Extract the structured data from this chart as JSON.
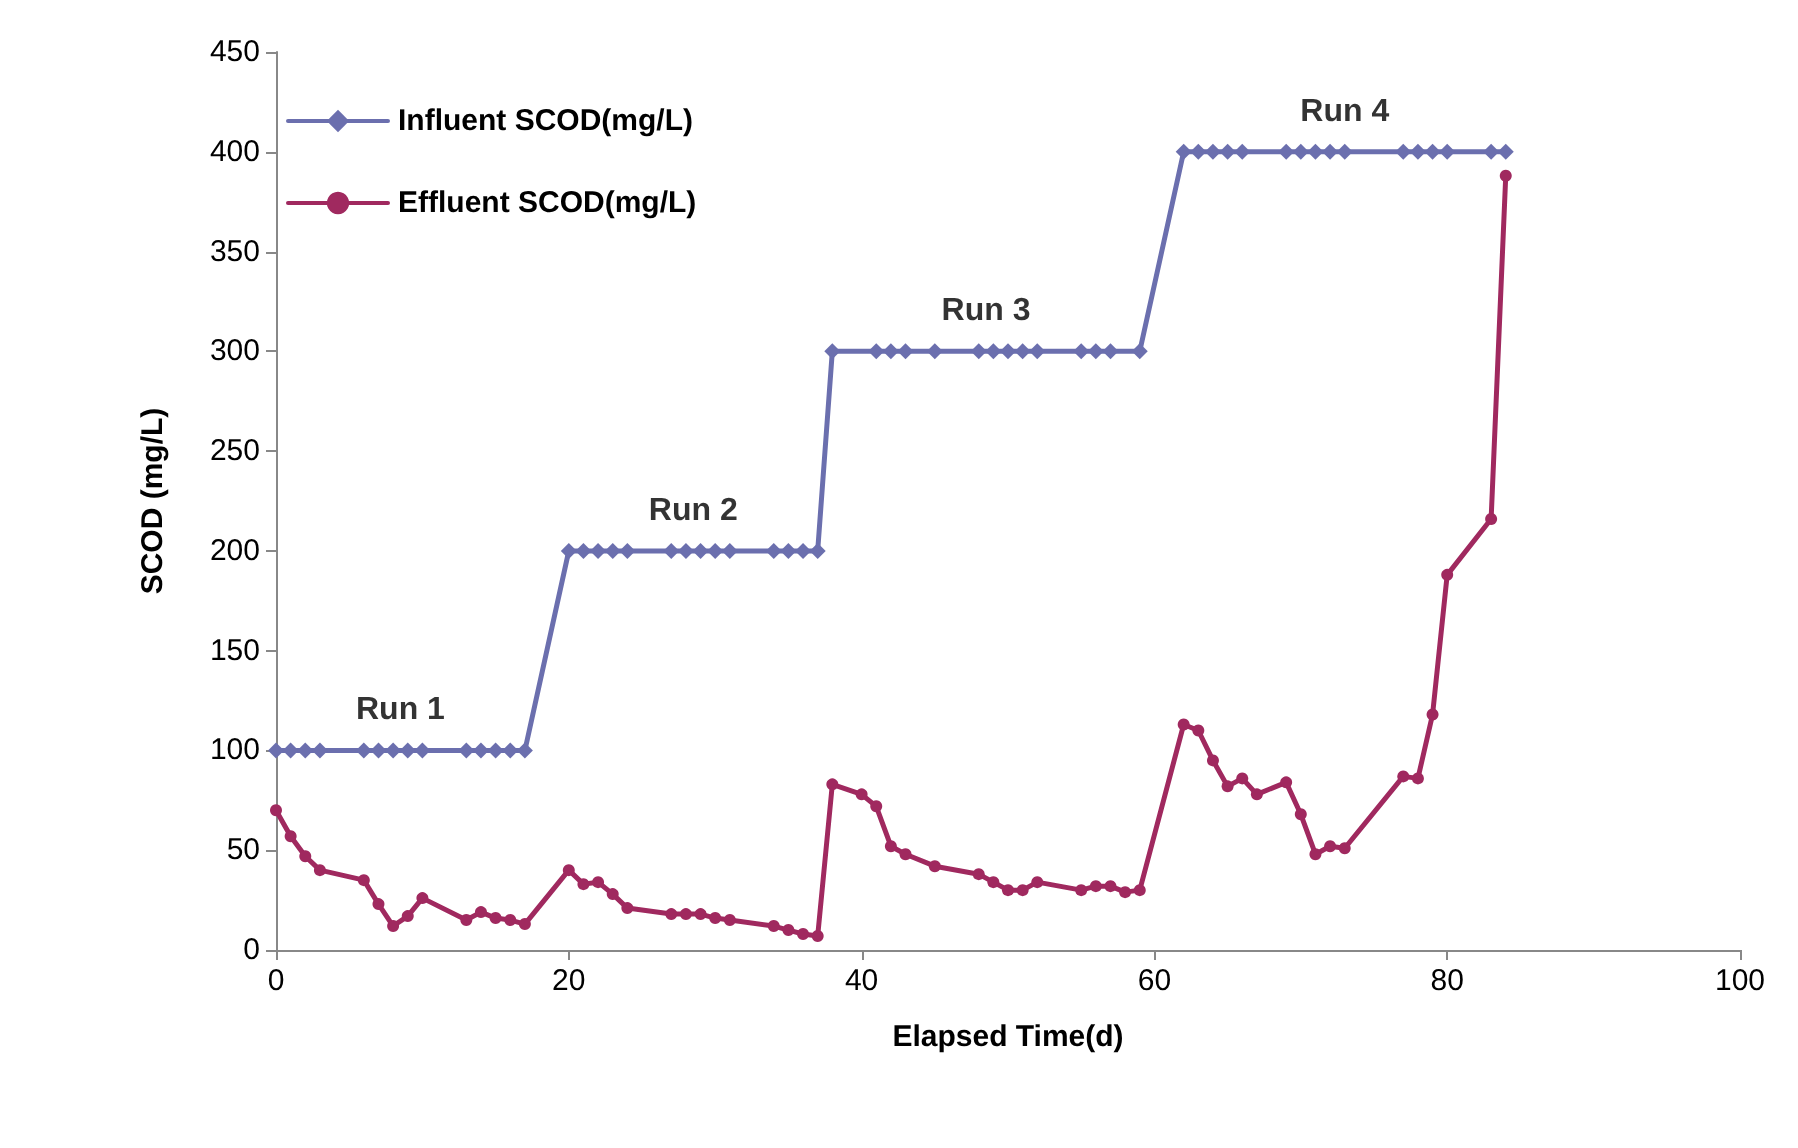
{
  "chart_data": {
    "type": "line",
    "xlabel": "Elapsed Time(d)",
    "ylabel": "SCOD (mg/L)",
    "xlim": [
      0,
      100
    ],
    "xticks": [
      0,
      20,
      40,
      60,
      80,
      100
    ],
    "ylim": [
      0,
      450
    ],
    "yticks": [
      0,
      50,
      100,
      150,
      200,
      250,
      300,
      350,
      400,
      450
    ],
    "grid": false,
    "legend": "top left",
    "line_style": "solid",
    "series": [
      {
        "name": "Influent SCOD(mg/L)",
        "color": "#6b6fae",
        "marker": "diamond",
        "x": [
          0,
          1,
          2,
          3,
          6,
          7,
          8,
          9,
          10,
          13,
          14,
          15,
          16,
          17,
          20,
          21,
          22,
          23,
          24,
          27,
          28,
          29,
          30,
          31,
          34,
          35,
          36,
          37,
          38,
          41,
          42,
          43,
          45,
          48,
          49,
          50,
          51,
          52,
          55,
          56,
          57,
          59,
          62,
          63,
          64,
          65,
          66,
          69,
          70,
          71,
          72,
          73,
          77,
          78,
          79,
          80,
          83,
          84
        ],
        "values": [
          100,
          100,
          100,
          100,
          100,
          100,
          100,
          100,
          100,
          100,
          100,
          100,
          100,
          100,
          200,
          200,
          200,
          200,
          200,
          200,
          200,
          200,
          200,
          200,
          200,
          200,
          200,
          200,
          300,
          300,
          300,
          300,
          300,
          300,
          300,
          300,
          300,
          300,
          300,
          300,
          300,
          300,
          400,
          400,
          400,
          400,
          400,
          400,
          400,
          400,
          400,
          400,
          400,
          400,
          400,
          400,
          400,
          400
        ]
      },
      {
        "name": "Effluent SCOD(mg/L)",
        "color": "#a0295f",
        "marker": "circle",
        "x": [
          0,
          1,
          2,
          3,
          6,
          7,
          8,
          9,
          10,
          13,
          14,
          15,
          16,
          17,
          20,
          21,
          22,
          23,
          24,
          27,
          28,
          29,
          30,
          31,
          34,
          35,
          36,
          37,
          38,
          40,
          41,
          42,
          43,
          45,
          48,
          49,
          50,
          51,
          52,
          55,
          56,
          57,
          58,
          59,
          62,
          63,
          64,
          65,
          66,
          67,
          69,
          70,
          71,
          72,
          73,
          77,
          78,
          79,
          80,
          83,
          84
        ],
        "values": [
          70,
          57,
          47,
          40,
          35,
          23,
          12,
          17,
          26,
          15,
          19,
          16,
          15,
          13,
          40,
          33,
          34,
          28,
          21,
          18,
          18,
          18,
          16,
          15,
          12,
          10,
          8,
          7,
          83,
          78,
          72,
          52,
          48,
          42,
          38,
          34,
          30,
          30,
          34,
          30,
          32,
          32,
          29,
          30,
          113,
          110,
          95,
          82,
          86,
          78,
          84,
          68,
          48,
          52,
          51,
          87,
          86,
          118,
          188,
          216,
          388
        ]
      }
    ],
    "annotations": [
      "Run 1",
      "Run 2",
      "Run 3",
      "Run 4"
    ]
  }
}
